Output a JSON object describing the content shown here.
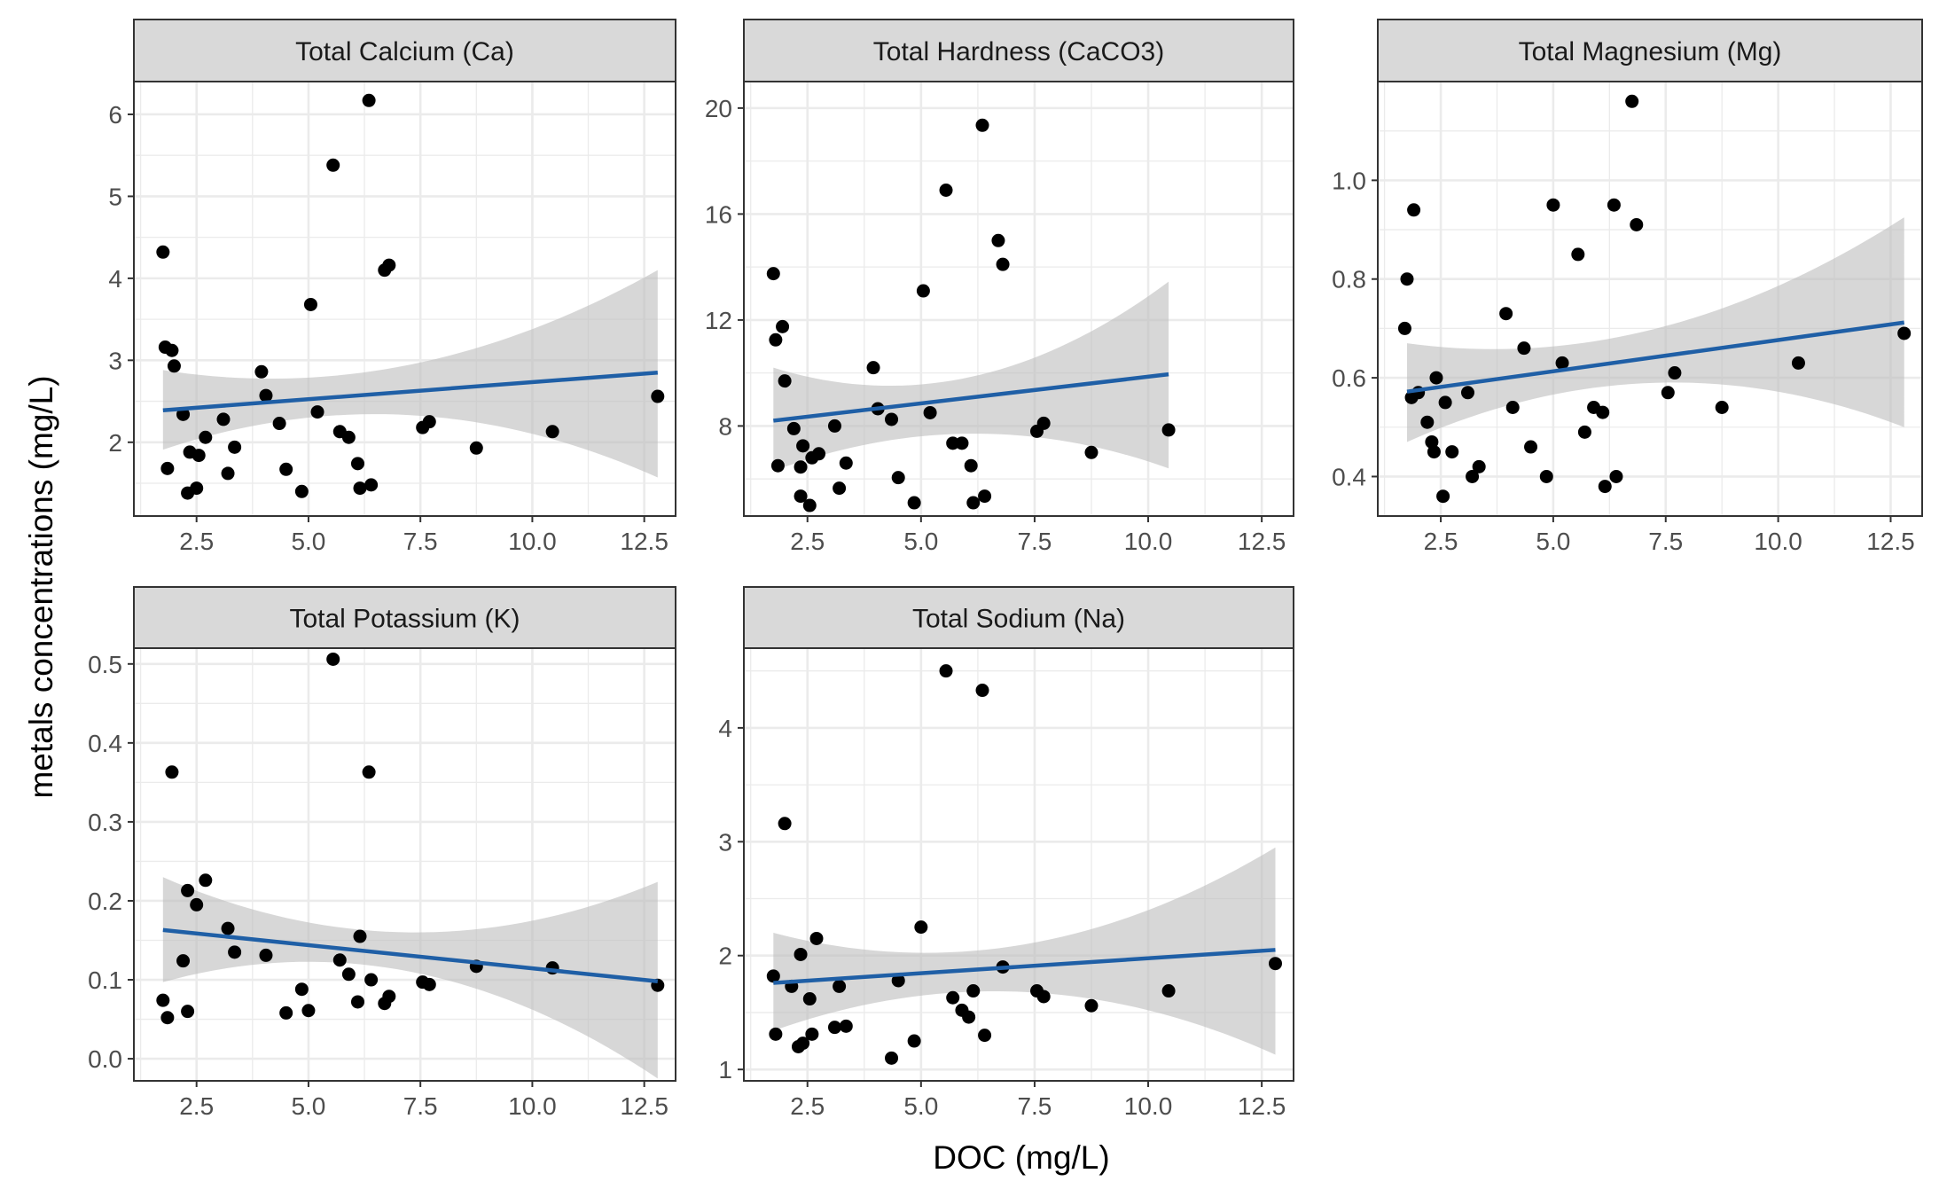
{
  "colors": {
    "points": "#000000",
    "fit_line": "#1f5fa6",
    "confidence_band": "#bdbdbd",
    "strip_fill": "#d9d9d9",
    "grid": "#ebebeb",
    "panel_border": "#333333"
  },
  "chart_data": {
    "type": "scatter",
    "xlabel": "DOC (mg/L)",
    "ylabel": "metals concentrations (mg/L)",
    "grid": true,
    "smoothing": "linear fit with confidence band",
    "panels": [
      {
        "title": "Total Calcium (Ca)",
        "xlim": [
          1.1,
          13.2
        ],
        "ylim": [
          1.1,
          6.4
        ],
        "xticks": [
          "2.5",
          "5.0",
          "7.5",
          "10.0",
          "12.5"
        ],
        "xtick_values": [
          2.5,
          5.0,
          7.5,
          10.0,
          12.5
        ],
        "yticks": [
          "2",
          "3",
          "4",
          "5",
          "6"
        ],
        "ytick_values": [
          2,
          3,
          4,
          5,
          6
        ],
        "points": [
          [
            1.75,
            4.32
          ],
          [
            1.8,
            3.16
          ],
          [
            1.85,
            1.68
          ],
          [
            1.95,
            3.12
          ],
          [
            2.0,
            2.93
          ],
          [
            2.2,
            2.34
          ],
          [
            2.3,
            1.38
          ],
          [
            2.35,
            1.88
          ],
          [
            2.5,
            1.44
          ],
          [
            2.55,
            1.84
          ],
          [
            2.7,
            2.06
          ],
          [
            3.1,
            2.28
          ],
          [
            3.2,
            1.62
          ],
          [
            3.35,
            1.94
          ],
          [
            3.95,
            2.86
          ],
          [
            4.05,
            2.57
          ],
          [
            4.35,
            2.23
          ],
          [
            4.5,
            1.67
          ],
          [
            4.85,
            1.4
          ],
          [
            5.05,
            3.68
          ],
          [
            5.2,
            2.37
          ],
          [
            5.55,
            5.38
          ],
          [
            5.7,
            2.13
          ],
          [
            5.9,
            2.06
          ],
          [
            6.1,
            1.74
          ],
          [
            6.15,
            1.44
          ],
          [
            6.35,
            6.17
          ],
          [
            6.4,
            1.48
          ],
          [
            6.7,
            4.1
          ],
          [
            6.8,
            4.16
          ],
          [
            7.55,
            2.18
          ],
          [
            7.7,
            2.25
          ],
          [
            8.75,
            1.93
          ],
          [
            10.45,
            2.13
          ],
          [
            12.8,
            2.56
          ]
        ],
        "fit": {
          "x": [
            1.75,
            12.8
          ],
          "y": [
            2.39,
            2.85
          ]
        },
        "band": {
          "x": [
            1.75,
            7.3,
            12.8
          ],
          "lower": [
            1.91,
            2.33,
            1.57
          ],
          "upper": [
            2.88,
            2.95,
            4.1
          ]
        }
      },
      {
        "title": "Total Hardness (CaCO3)",
        "xlim": [
          1.1,
          13.2
        ],
        "ylim": [
          4.6,
          21.0
        ],
        "xticks": [
          "2.5",
          "5.0",
          "7.5",
          "10.0",
          "12.5"
        ],
        "xtick_values": [
          2.5,
          5.0,
          7.5,
          10.0,
          12.5
        ],
        "yticks": [
          "8",
          "12",
          "16",
          "20"
        ],
        "ytick_values": [
          8,
          12,
          16,
          20
        ],
        "points": [
          [
            1.75,
            13.75
          ],
          [
            1.8,
            11.25
          ],
          [
            1.85,
            6.5
          ],
          [
            1.95,
            11.75
          ],
          [
            2.0,
            9.7
          ],
          [
            2.2,
            7.9
          ],
          [
            2.35,
            6.45
          ],
          [
            2.35,
            5.35
          ],
          [
            2.4,
            7.25
          ],
          [
            2.55,
            5.0
          ],
          [
            2.6,
            6.8
          ],
          [
            2.75,
            6.95
          ],
          [
            3.1,
            8.0
          ],
          [
            3.2,
            5.65
          ],
          [
            3.35,
            6.6
          ],
          [
            3.95,
            10.2
          ],
          [
            4.05,
            8.65
          ],
          [
            4.35,
            8.25
          ],
          [
            4.5,
            6.05
          ],
          [
            4.85,
            5.1
          ],
          [
            5.05,
            13.1
          ],
          [
            5.2,
            8.5
          ],
          [
            5.55,
            16.9
          ],
          [
            5.7,
            7.35
          ],
          [
            5.9,
            7.35
          ],
          [
            6.1,
            6.5
          ],
          [
            6.15,
            5.1
          ],
          [
            6.35,
            19.35
          ],
          [
            6.4,
            5.35
          ],
          [
            6.7,
            15.0
          ],
          [
            6.8,
            14.1
          ],
          [
            7.55,
            7.8
          ],
          [
            7.7,
            8.1
          ],
          [
            8.75,
            7.0
          ],
          [
            10.45,
            7.85
          ]
        ],
        "fit": {
          "x": [
            1.75,
            10.45
          ],
          "y": [
            8.2,
            9.95
          ]
        },
        "band": {
          "x": [
            1.75,
            5.8,
            10.45
          ],
          "lower": [
            6.3,
            7.7,
            6.4
          ],
          "upper": [
            10.2,
            9.75,
            13.45
          ]
        }
      },
      {
        "title": "Total Magnesium (Mg)",
        "xlim": [
          1.1,
          13.2
        ],
        "ylim": [
          0.32,
          1.2
        ],
        "xticks": [
          "2.5",
          "5.0",
          "7.5",
          "10.0",
          "12.5"
        ],
        "xtick_values": [
          2.5,
          5.0,
          7.5,
          10.0,
          12.5
        ],
        "yticks": [
          "0.4",
          "0.6",
          "0.8",
          "1.0"
        ],
        "ytick_values": [
          0.4,
          0.6,
          0.8,
          1.0
        ],
        "points": [
          [
            1.7,
            0.7
          ],
          [
            1.75,
            0.8
          ],
          [
            1.85,
            0.56
          ],
          [
            1.9,
            0.94
          ],
          [
            2.0,
            0.57
          ],
          [
            2.2,
            0.51
          ],
          [
            2.3,
            0.47
          ],
          [
            2.35,
            0.45
          ],
          [
            2.4,
            0.6
          ],
          [
            2.55,
            0.36
          ],
          [
            2.6,
            0.55
          ],
          [
            2.75,
            0.45
          ],
          [
            3.1,
            0.57
          ],
          [
            3.2,
            0.4
          ],
          [
            3.35,
            0.42
          ],
          [
            3.95,
            0.73
          ],
          [
            4.1,
            0.54
          ],
          [
            4.35,
            0.66
          ],
          [
            4.5,
            0.46
          ],
          [
            4.85,
            0.4
          ],
          [
            5.0,
            0.95
          ],
          [
            5.2,
            0.63
          ],
          [
            5.55,
            0.85
          ],
          [
            5.7,
            0.49
          ],
          [
            5.9,
            0.54
          ],
          [
            6.1,
            0.53
          ],
          [
            6.15,
            0.38
          ],
          [
            6.35,
            0.95
          ],
          [
            6.4,
            0.4
          ],
          [
            6.75,
            1.16
          ],
          [
            6.85,
            0.91
          ],
          [
            7.55,
            0.57
          ],
          [
            7.7,
            0.61
          ],
          [
            8.75,
            0.54
          ],
          [
            10.45,
            0.63
          ],
          [
            12.8,
            0.69
          ]
        ],
        "fit": {
          "x": [
            1.75,
            12.8
          ],
          "y": [
            0.572,
            0.712
          ]
        },
        "band": {
          "x": [
            1.75,
            7.3,
            12.8
          ],
          "lower": [
            0.47,
            0.59,
            0.5
          ],
          "upper": [
            0.67,
            0.7,
            0.925
          ]
        }
      },
      {
        "title": "Total Potassium (K)",
        "xlim": [
          1.1,
          13.2
        ],
        "ylim": [
          -0.028,
          0.52
        ],
        "xticks": [
          "2.5",
          "5.0",
          "7.5",
          "10.0",
          "12.5"
        ],
        "xtick_values": [
          2.5,
          5.0,
          7.5,
          10.0,
          12.5
        ],
        "yticks": [
          "0.0",
          "0.1",
          "0.2",
          "0.3",
          "0.4",
          "0.5"
        ],
        "ytick_values": [
          0.0,
          0.1,
          0.2,
          0.3,
          0.4,
          0.5
        ],
        "points": [
          [
            1.75,
            0.074
          ],
          [
            1.85,
            0.052
          ],
          [
            1.95,
            0.363
          ],
          [
            2.2,
            0.124
          ],
          [
            2.3,
            0.06
          ],
          [
            2.3,
            0.213
          ],
          [
            2.5,
            0.195
          ],
          [
            2.7,
            0.226
          ],
          [
            3.2,
            0.165
          ],
          [
            3.35,
            0.135
          ],
          [
            4.05,
            0.131
          ],
          [
            4.5,
            0.058
          ],
          [
            4.85,
            0.088
          ],
          [
            5.0,
            0.061
          ],
          [
            5.55,
            0.506
          ],
          [
            5.7,
            0.125
          ],
          [
            5.9,
            0.107
          ],
          [
            6.1,
            0.072
          ],
          [
            6.15,
            0.155
          ],
          [
            6.35,
            0.363
          ],
          [
            6.4,
            0.1
          ],
          [
            6.7,
            0.07
          ],
          [
            6.8,
            0.079
          ],
          [
            7.55,
            0.097
          ],
          [
            7.7,
            0.094
          ],
          [
            8.75,
            0.117
          ],
          [
            10.45,
            0.115
          ],
          [
            12.8,
            0.093
          ]
        ],
        "fit": {
          "x": [
            1.75,
            12.8
          ],
          "y": [
            0.163,
            0.098
          ]
        },
        "band": {
          "x": [
            1.75,
            7.3,
            12.8
          ],
          "lower": [
            0.097,
            0.11,
            -0.025
          ],
          "upper": [
            0.23,
            0.16,
            0.224
          ]
        }
      },
      {
        "title": "Total Sodium (Na)",
        "xlim": [
          1.1,
          13.2
        ],
        "ylim": [
          0.9,
          4.7
        ],
        "xticks": [
          "2.5",
          "5.0",
          "7.5",
          "10.0",
          "12.5"
        ],
        "xtick_values": [
          2.5,
          5.0,
          7.5,
          10.0,
          12.5
        ],
        "yticks": [
          "1",
          "2",
          "3",
          "4"
        ],
        "ytick_values": [
          1,
          2,
          3,
          4
        ],
        "points": [
          [
            1.75,
            1.82
          ],
          [
            1.8,
            1.31
          ],
          [
            2.0,
            3.16
          ],
          [
            2.15,
            1.73
          ],
          [
            2.3,
            1.2
          ],
          [
            2.35,
            2.01
          ],
          [
            2.4,
            1.23
          ],
          [
            2.55,
            1.62
          ],
          [
            2.6,
            1.31
          ],
          [
            2.7,
            2.15
          ],
          [
            3.1,
            1.37
          ],
          [
            3.2,
            1.73
          ],
          [
            3.35,
            1.38
          ],
          [
            4.35,
            1.1
          ],
          [
            4.5,
            1.78
          ],
          [
            4.85,
            1.25
          ],
          [
            5.0,
            2.25
          ],
          [
            5.55,
            4.5
          ],
          [
            5.7,
            1.63
          ],
          [
            5.9,
            1.52
          ],
          [
            6.05,
            1.46
          ],
          [
            6.15,
            1.69
          ],
          [
            6.35,
            4.33
          ],
          [
            6.4,
            1.3
          ],
          [
            6.8,
            1.9
          ],
          [
            7.55,
            1.69
          ],
          [
            7.7,
            1.64
          ],
          [
            8.75,
            1.56
          ],
          [
            10.45,
            1.69
          ],
          [
            12.8,
            1.93
          ]
        ],
        "fit": {
          "x": [
            1.75,
            12.8
          ],
          "y": [
            1.76,
            2.05
          ]
        },
        "band": {
          "x": [
            1.75,
            7.3,
            12.8
          ],
          "lower": [
            1.34,
            1.68,
            1.13
          ],
          "upper": [
            2.2,
            2.1,
            2.95
          ]
        }
      }
    ]
  }
}
